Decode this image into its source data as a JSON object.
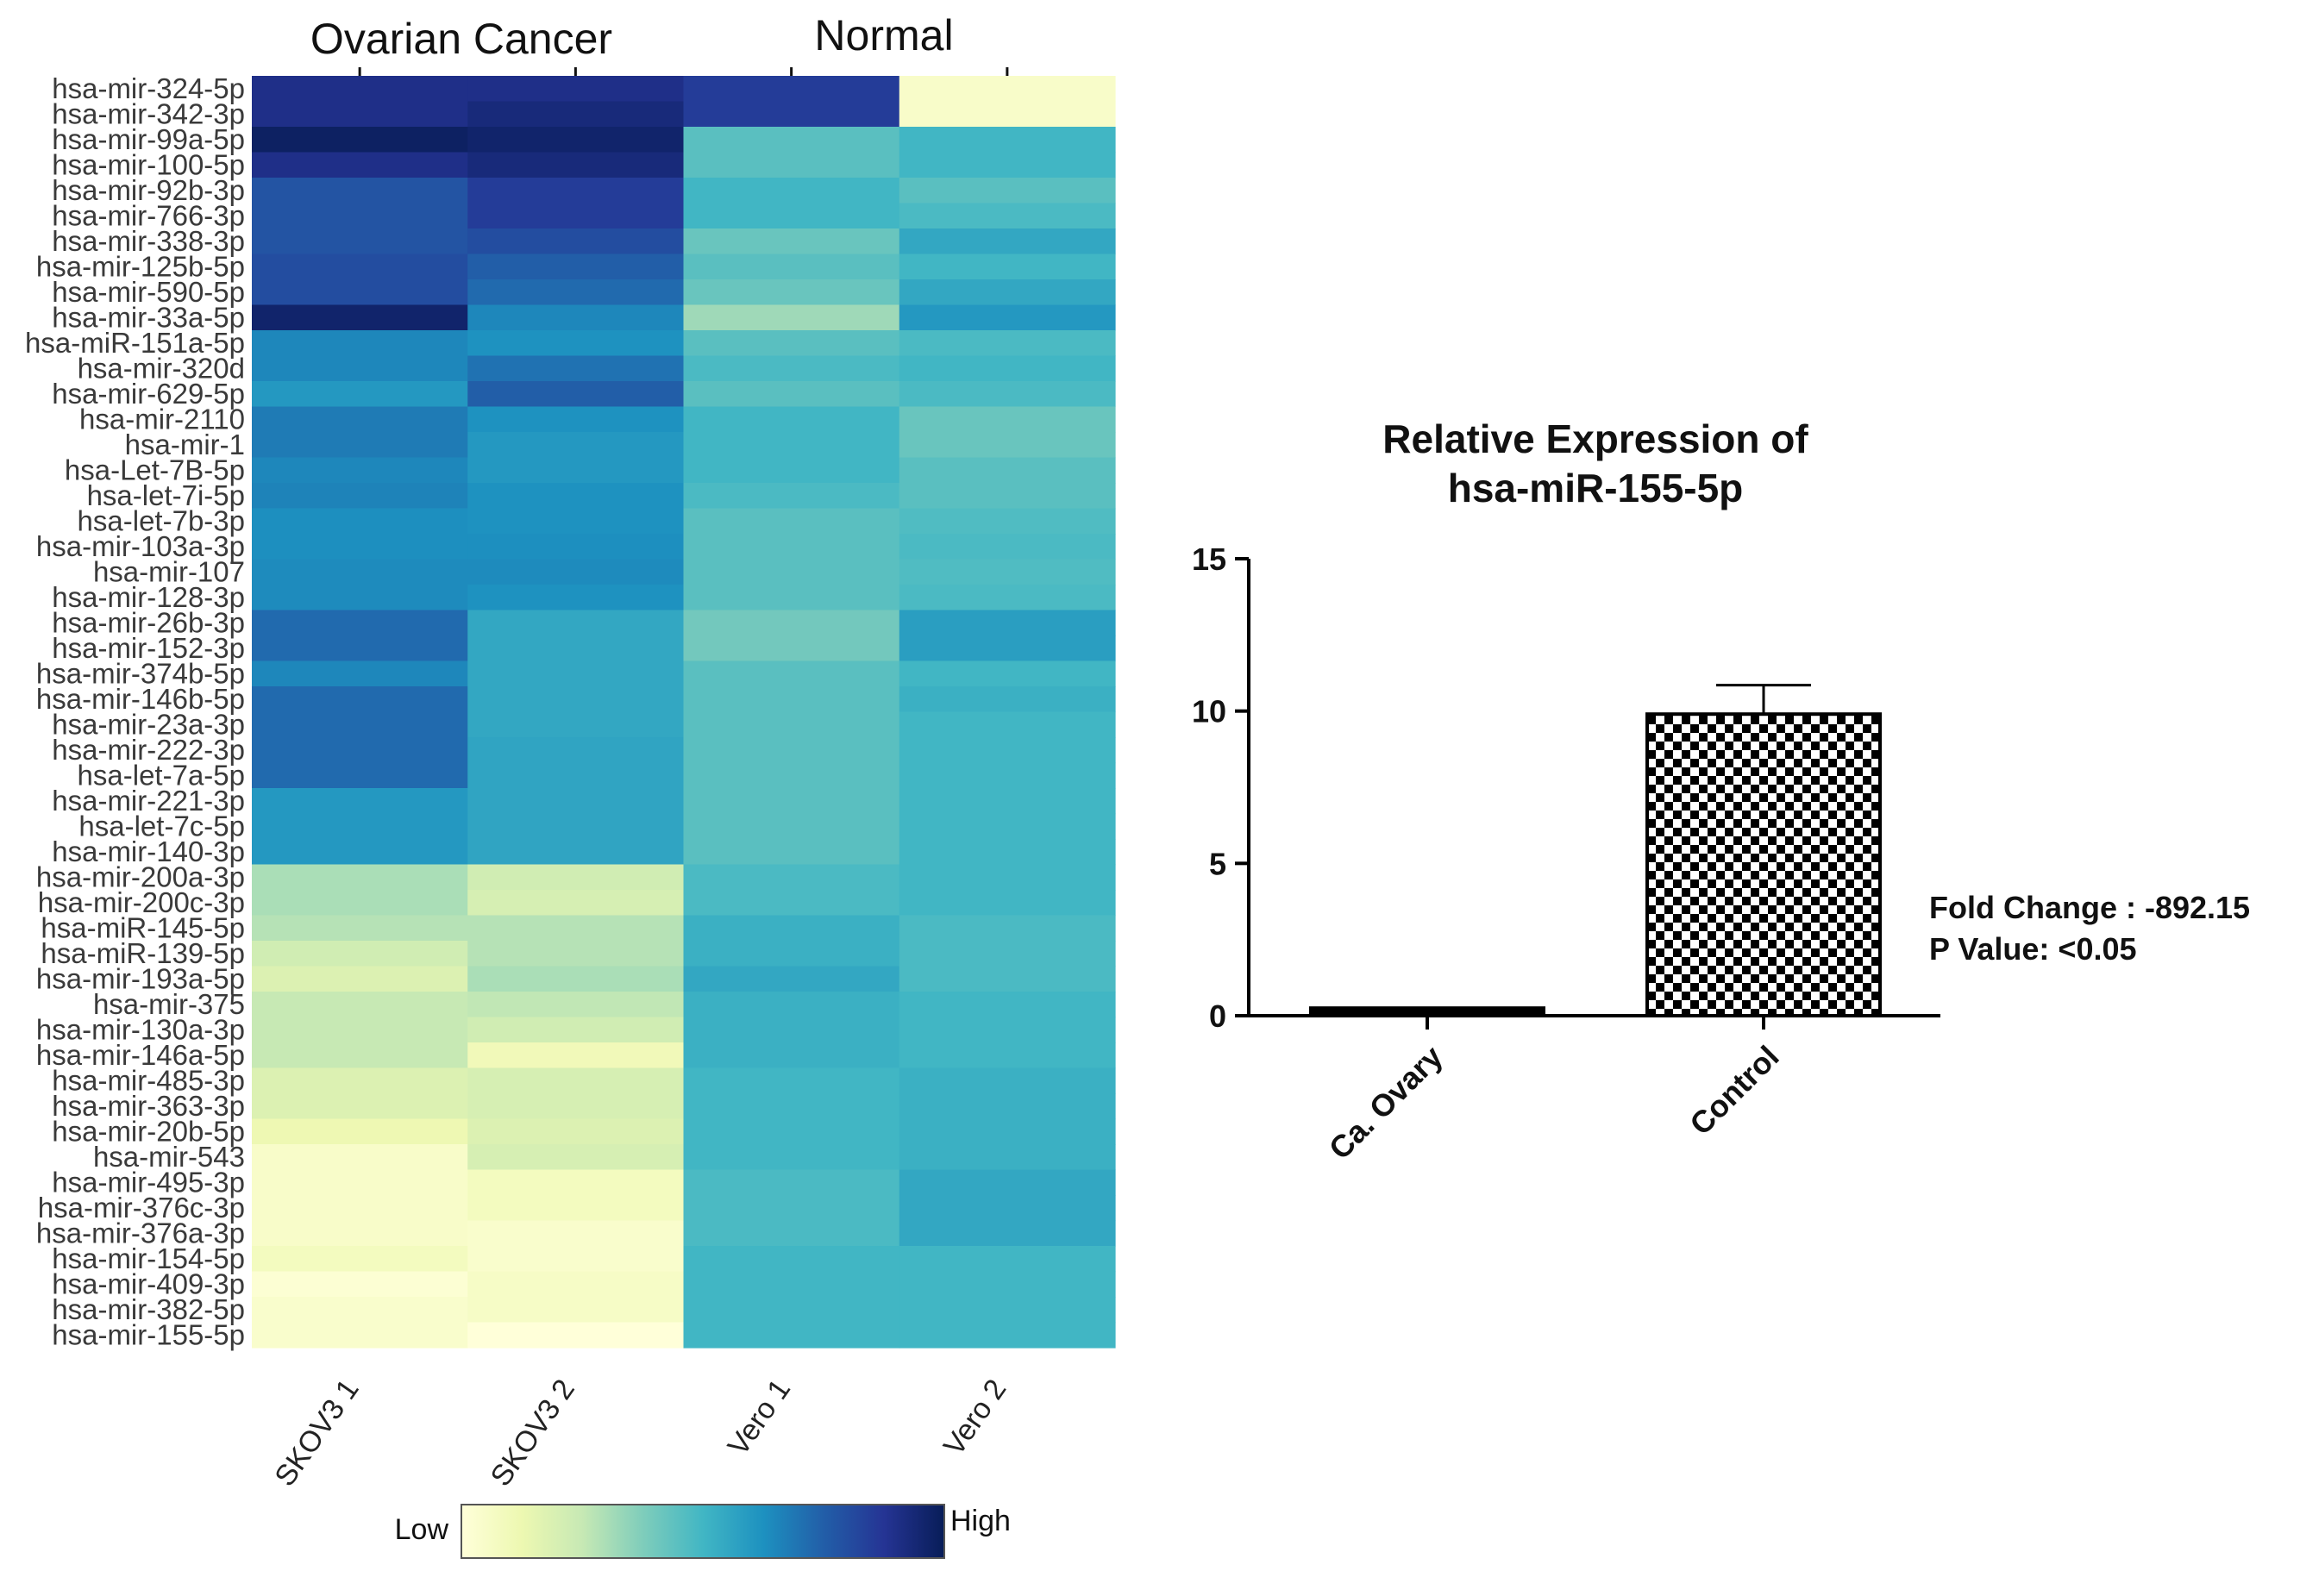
{
  "chart_data": [
    {
      "type": "heatmap",
      "groups": [
        {
          "label": "Ovarian Cancer",
          "columns": [
            0,
            1
          ]
        },
        {
          "label": "Normal",
          "columns": [
            2,
            3
          ]
        }
      ],
      "columns": [
        "SKOV3 1",
        "SKOV3 2",
        "Vero 1",
        "Vero 2"
      ],
      "rows": [
        "hsa-mir-324-5p",
        "hsa-mir-342-3p",
        "hsa-mir-99a-5p",
        "hsa-mir-100-5p",
        "hsa-mir-92b-3p",
        "hsa-mir-766-3p",
        "hsa-mir-338-3p",
        "hsa-mir-125b-5p",
        "hsa-mir-590-5p",
        "hsa-mir-33a-5p",
        "hsa-miR-151a-5p",
        "hsa-mir-320d",
        "hsa-mir-629-5p",
        "hsa-mir-2110",
        "hsa-mir-1",
        "hsa-Let-7B-5p",
        "hsa-let-7i-5p",
        "hsa-let-7b-3p",
        "hsa-mir-103a-3p",
        "hsa-mir-107",
        "hsa-mir-128-3p",
        "hsa-mir-26b-3p",
        "hsa-mir-152-3p",
        "hsa-mir-374b-5p",
        "hsa-mir-146b-5p",
        "hsa-mir-23a-3p",
        "hsa-mir-222-3p",
        "hsa-let-7a-5p",
        "hsa-mir-221-3p",
        "hsa-let-7c-5p",
        "hsa-mir-140-3p",
        "hsa-mir-200a-3p",
        "hsa-mir-200c-3p",
        "hsa-miR-145-5p",
        "hsa-miR-139-5p",
        "hsa-mir-193a-5p",
        "hsa-mir-375",
        "hsa-mir-130a-3p",
        "hsa-mir-146a-5p",
        "hsa-mir-485-3p",
        "hsa-mir-363-3p",
        "hsa-mir-20b-5p",
        "hsa-mir-543",
        "hsa-mir-495-3p",
        "hsa-mir-376c-3p",
        "hsa-mir-376a-3p",
        "hsa-mir-154-5p",
        "hsa-mir-409-3p",
        "hsa-mir-382-5p",
        "hsa-mir-155-5p"
      ],
      "values": [
        [
          0.9,
          0.9,
          0.85,
          0.05
        ],
        [
          0.9,
          0.93,
          0.85,
          0.05
        ],
        [
          0.98,
          0.96,
          0.45,
          0.5
        ],
        [
          0.9,
          0.93,
          0.45,
          0.5
        ],
        [
          0.78,
          0.85,
          0.5,
          0.45
        ],
        [
          0.78,
          0.85,
          0.5,
          0.48
        ],
        [
          0.78,
          0.8,
          0.42,
          0.55
        ],
        [
          0.8,
          0.75,
          0.45,
          0.5
        ],
        [
          0.8,
          0.72,
          0.42,
          0.55
        ],
        [
          0.96,
          0.65,
          0.32,
          0.6
        ],
        [
          0.65,
          0.62,
          0.45,
          0.48
        ],
        [
          0.65,
          0.7,
          0.48,
          0.5
        ],
        [
          0.6,
          0.75,
          0.45,
          0.48
        ],
        [
          0.68,
          0.62,
          0.5,
          0.42
        ],
        [
          0.68,
          0.6,
          0.5,
          0.42
        ],
        [
          0.65,
          0.6,
          0.5,
          0.45
        ],
        [
          0.66,
          0.62,
          0.48,
          0.45
        ],
        [
          0.63,
          0.62,
          0.45,
          0.47
        ],
        [
          0.63,
          0.63,
          0.45,
          0.48
        ],
        [
          0.64,
          0.64,
          0.45,
          0.47
        ],
        [
          0.64,
          0.62,
          0.45,
          0.48
        ],
        [
          0.72,
          0.55,
          0.4,
          0.58
        ],
        [
          0.72,
          0.55,
          0.4,
          0.58
        ],
        [
          0.65,
          0.55,
          0.45,
          0.5
        ],
        [
          0.72,
          0.55,
          0.45,
          0.52
        ],
        [
          0.72,
          0.55,
          0.45,
          0.5
        ],
        [
          0.72,
          0.56,
          0.45,
          0.5
        ],
        [
          0.72,
          0.56,
          0.45,
          0.5
        ],
        [
          0.6,
          0.56,
          0.45,
          0.5
        ],
        [
          0.6,
          0.56,
          0.45,
          0.5
        ],
        [
          0.6,
          0.56,
          0.45,
          0.5
        ],
        [
          0.3,
          0.22,
          0.48,
          0.5
        ],
        [
          0.3,
          0.2,
          0.48,
          0.5
        ],
        [
          0.28,
          0.28,
          0.52,
          0.48
        ],
        [
          0.22,
          0.28,
          0.52,
          0.48
        ],
        [
          0.18,
          0.3,
          0.55,
          0.48
        ],
        [
          0.25,
          0.26,
          0.52,
          0.5
        ],
        [
          0.25,
          0.22,
          0.52,
          0.5
        ],
        [
          0.25,
          0.1,
          0.52,
          0.5
        ],
        [
          0.18,
          0.2,
          0.5,
          0.52
        ],
        [
          0.18,
          0.2,
          0.5,
          0.52
        ],
        [
          0.12,
          0.18,
          0.5,
          0.52
        ],
        [
          0.05,
          0.2,
          0.5,
          0.52
        ],
        [
          0.05,
          0.08,
          0.48,
          0.55
        ],
        [
          0.05,
          0.08,
          0.48,
          0.55
        ],
        [
          0.05,
          0.04,
          0.48,
          0.55
        ],
        [
          0.08,
          0.04,
          0.5,
          0.5
        ],
        [
          0.02,
          0.06,
          0.5,
          0.5
        ],
        [
          0.04,
          0.06,
          0.5,
          0.5
        ],
        [
          0.04,
          0.0,
          0.5,
          0.5
        ]
      ],
      "colorscale": [
        "#ffffd9",
        "#edf8b1",
        "#c7e9b4",
        "#7fcdbb",
        "#41b6c4",
        "#1d91c0",
        "#225ea8",
        "#253494",
        "#081d58"
      ],
      "legend": {
        "low_label": "Low",
        "high_label": "High"
      }
    },
    {
      "type": "bar",
      "title_lines": [
        "Relative Expression of",
        "hsa-miR-155-5p"
      ],
      "categories": [
        "Ca. Ovary",
        "Control"
      ],
      "values": [
        0.25,
        9.9
      ],
      "error": [
        0.05,
        0.95
      ],
      "ylim": [
        0,
        15
      ],
      "yticks": [
        0,
        5,
        10,
        15
      ],
      "patterns": [
        "solid",
        "checkerboard"
      ],
      "annotations": [
        "Fold Change : -892.15",
        "P Value: <0.05"
      ]
    }
  ]
}
